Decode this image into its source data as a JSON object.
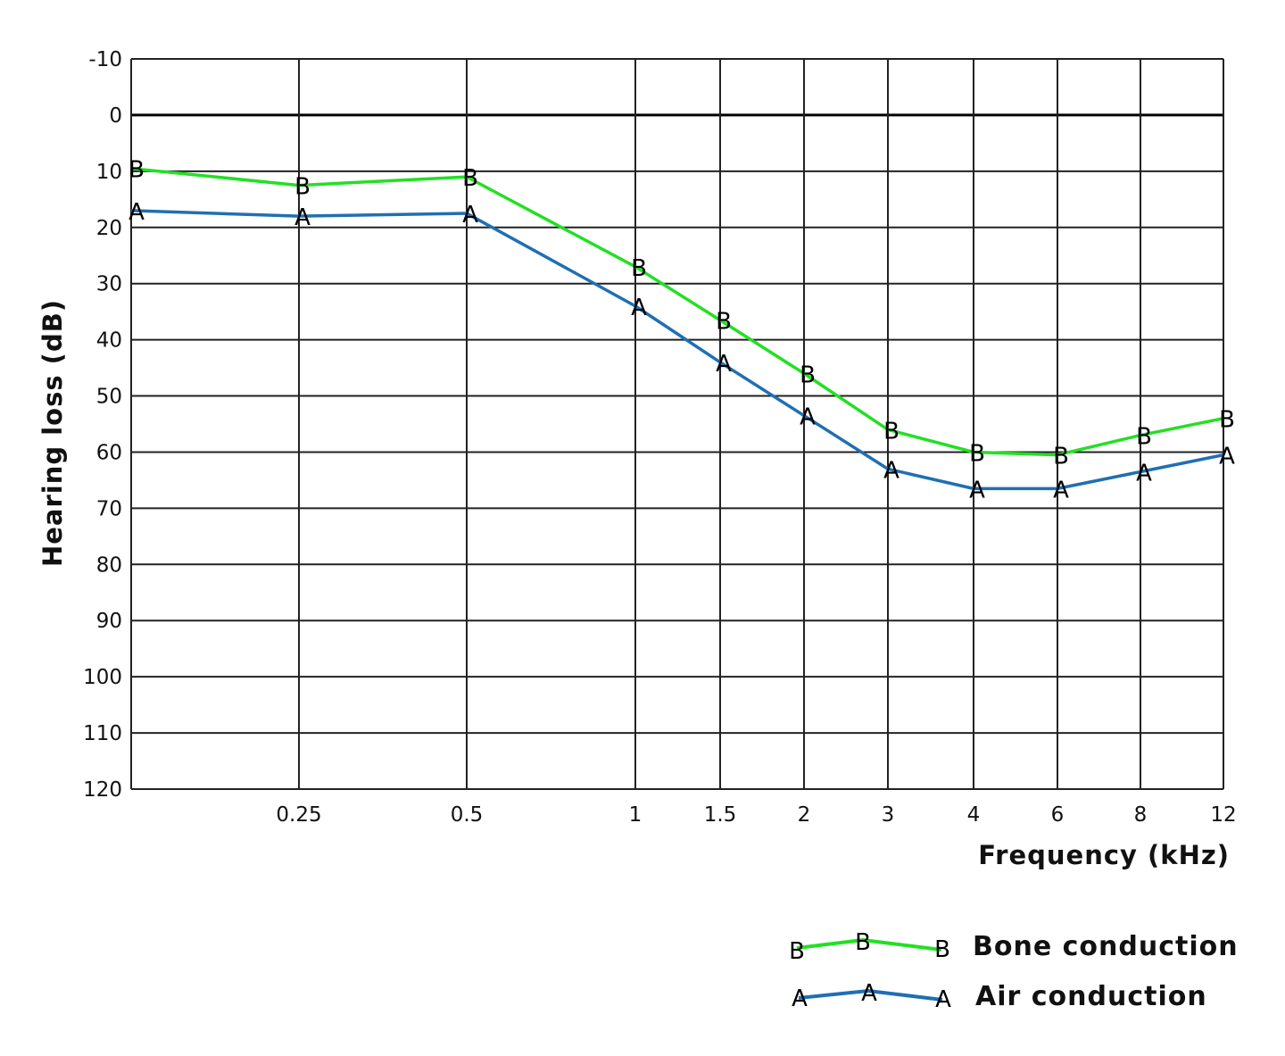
{
  "chart_data": {
    "type": "line",
    "x": [
      "",
      "0.25",
      "0.5",
      "1",
      "1.5",
      "2",
      "3",
      "4",
      "6",
      "8",
      "12"
    ],
    "xlabel": "Frequency (kHz)",
    "ylabel": "Hearing loss (dB)",
    "ylim": [
      -10,
      120
    ],
    "y_inverted": true,
    "y_ticks": [
      "-10",
      "0",
      "10",
      "20",
      "30",
      "40",
      "50",
      "60",
      "70",
      "80",
      "90",
      "100",
      "110",
      "120"
    ],
    "grid": true,
    "legend_position": "bottom-right",
    "series": [
      {
        "name": "Bone conduction",
        "marker": "B",
        "color": "#22e022",
        "values": [
          9.5,
          12.5,
          11,
          27,
          36.5,
          46,
          56,
          60,
          60.5,
          57,
          54
        ]
      },
      {
        "name": "Air conduction",
        "marker": "A",
        "color": "#1f6fb3",
        "values": [
          17,
          18,
          17.5,
          34,
          44,
          53.5,
          63,
          66.5,
          66.5,
          63.5,
          60.5
        ]
      }
    ]
  }
}
